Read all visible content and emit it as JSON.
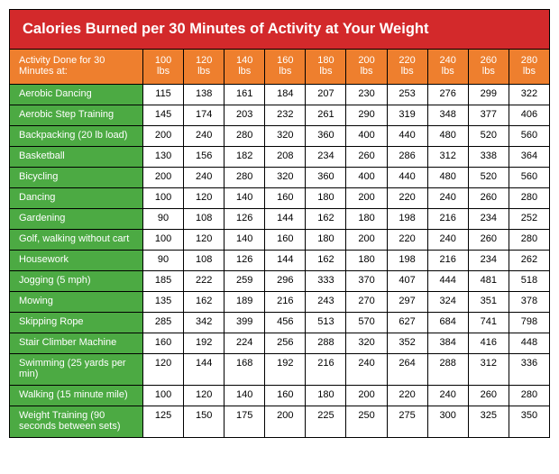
{
  "title": "Calories Burned per 30 Minutes of Activity at Your Weight",
  "header_label": "Activity Done for 30 Minutes at:",
  "weights": [
    "100 lbs",
    "120 lbs",
    "140 lbs",
    "160 lbs",
    "180 lbs",
    "200 lbs",
    "220 lbs",
    "240 lbs",
    "260 lbs",
    "280 lbs"
  ],
  "rows": [
    {
      "label": "Aerobic Dancing",
      "vals": [
        115,
        138,
        161,
        184,
        207,
        230,
        253,
        276,
        299,
        322
      ]
    },
    {
      "label": "Aerobic Step Training",
      "vals": [
        145,
        174,
        203,
        232,
        261,
        290,
        319,
        348,
        377,
        406
      ]
    },
    {
      "label": "Backpacking (20 lb load)",
      "vals": [
        200,
        240,
        280,
        320,
        360,
        400,
        440,
        480,
        520,
        560
      ]
    },
    {
      "label": "Basketball",
      "vals": [
        130,
        156,
        182,
        208,
        234,
        260,
        286,
        312,
        338,
        364
      ]
    },
    {
      "label": "Bicycling",
      "vals": [
        200,
        240,
        280,
        320,
        360,
        400,
        440,
        480,
        520,
        560
      ]
    },
    {
      "label": "Dancing",
      "vals": [
        100,
        120,
        140,
        160,
        180,
        200,
        220,
        240,
        260,
        280
      ]
    },
    {
      "label": "Gardening",
      "vals": [
        90,
        108,
        126,
        144,
        162,
        180,
        198,
        216,
        234,
        252
      ]
    },
    {
      "label": "Golf, walking without cart",
      "vals": [
        100,
        120,
        140,
        160,
        180,
        200,
        220,
        240,
        260,
        280
      ]
    },
    {
      "label": "Housework",
      "vals": [
        90,
        108,
        126,
        144,
        162,
        180,
        198,
        216,
        234,
        262
      ]
    },
    {
      "label": "Jogging (5 mph)",
      "vals": [
        185,
        222,
        259,
        296,
        333,
        370,
        407,
        444,
        481,
        518
      ]
    },
    {
      "label": "Mowing",
      "vals": [
        135,
        162,
        189,
        216,
        243,
        270,
        297,
        324,
        351,
        378
      ]
    },
    {
      "label": "Skipping Rope",
      "vals": [
        285,
        342,
        399,
        456,
        513,
        570,
        627,
        684,
        741,
        798
      ]
    },
    {
      "label": "Stair Climber Machine",
      "vals": [
        160,
        192,
        224,
        256,
        288,
        320,
        352,
        384,
        416,
        448
      ]
    },
    {
      "label": "Swimming (25 yards per min)",
      "vals": [
        120,
        144,
        168,
        192,
        216,
        240,
        264,
        288,
        312,
        336
      ]
    },
    {
      "label": "Walking (15 minute mile)",
      "vals": [
        100,
        120,
        140,
        160,
        180,
        200,
        220,
        240,
        260,
        280
      ]
    },
    {
      "label": "Weight Training (90 seconds between sets)",
      "vals": [
        125,
        150,
        175,
        200,
        225,
        250,
        275,
        300,
        325,
        350
      ]
    }
  ]
}
